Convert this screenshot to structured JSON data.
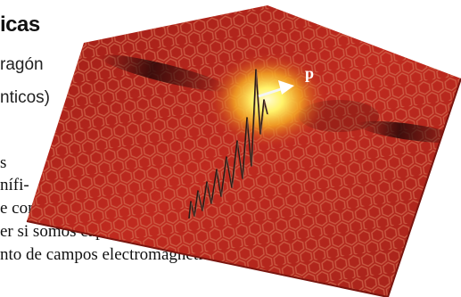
{
  "article": {
    "title_fragment": "icas",
    "author_line_1": "ragón",
    "author_line_2": "nticos)",
    "body_lines": [
      "s",
      "nífi-",
      "e como célula",
      "er si somos capaces de",
      "nto de campos electromagnéti"
    ]
  },
  "figure": {
    "label": "p",
    "sheet_color": "#b8241c",
    "hex_color": "#c5573f",
    "glow_color": "#fff36a"
  }
}
